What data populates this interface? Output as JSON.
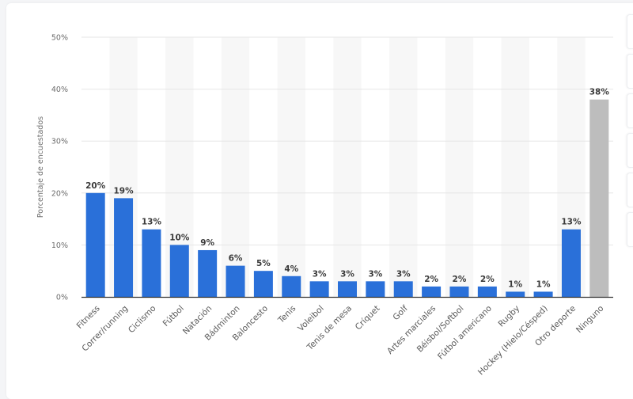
{
  "chart_data": {
    "type": "bar",
    "title": "",
    "xlabel": "",
    "ylabel": "Porcentaje de encuestados",
    "ylim": [
      0,
      50
    ],
    "yticks": [
      "0%",
      "10%",
      "20%",
      "30%",
      "40%",
      "50%"
    ],
    "grid": true,
    "legend": null,
    "categories": [
      "Fitness",
      "Correr/running",
      "Ciclismo",
      "Fútbol",
      "Natación",
      "Bádminton",
      "Baloncesto",
      "Tenis",
      "Voleibol",
      "Tenis de mesa",
      "Críquet",
      "Golf",
      "Artes marciales",
      "Béisbol/Softbol",
      "Fútbol americano",
      "Rugby",
      "Hockey (Hielo/Césped)",
      "Otro deporte",
      "Ninguno"
    ],
    "values": [
      20,
      19,
      13,
      10,
      9,
      6,
      5,
      4,
      3,
      3,
      3,
      3,
      2,
      2,
      2,
      1,
      1,
      13,
      38
    ],
    "value_labels": [
      "20%",
      "19%",
      "13%",
      "10%",
      "9%",
      "6%",
      "5%",
      "4%",
      "3%",
      "3%",
      "3%",
      "3%",
      "2%",
      "2%",
      "2%",
      "1%",
      "1%",
      "13%",
      "38%"
    ],
    "colors": {
      "bar": "#2a70d9",
      "highlight_bar": "#bdbdbd",
      "highlight_index": 18,
      "gridline": "#e6e6e6",
      "band": "#f7f7f7",
      "axis": "#333333"
    }
  }
}
